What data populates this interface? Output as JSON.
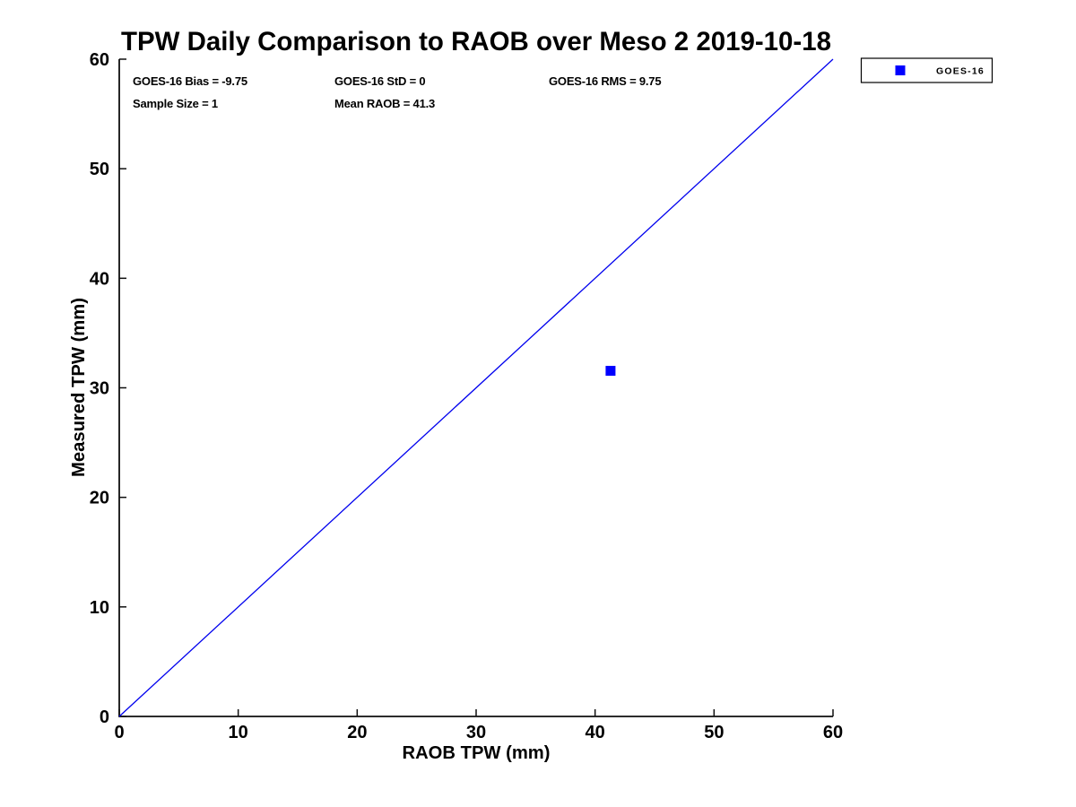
{
  "chart_data": {
    "type": "scatter",
    "title": "TPW Daily Comparison to RAOB over Meso 2 2019-10-18",
    "xlabel": "RAOB TPW (mm)",
    "ylabel": "Measured TPW (mm)",
    "xlim": [
      0,
      60
    ],
    "ylim": [
      0,
      60
    ],
    "xticks": [
      0,
      10,
      20,
      30,
      40,
      50,
      60
    ],
    "yticks": [
      0,
      10,
      20,
      30,
      40,
      50,
      60
    ],
    "grid": false,
    "box": "left-bottom-only",
    "stats": {
      "bias": "GOES-16 Bias = -9.75",
      "std": "GOES-16 StD = 0",
      "rms": "GOES-16 RMS = 9.75",
      "sample_size": "Sample Size = 1",
      "mean_raob": "Mean RAOB = 41.3"
    },
    "legend": {
      "position": "outside-top-right",
      "entries": [
        {
          "label": "GOES-16",
          "marker": "square",
          "color": "#0000ff"
        }
      ]
    },
    "series": [
      {
        "name": "GOES-16",
        "type": "scatter",
        "marker": "square",
        "color": "#0000ff",
        "points": [
          {
            "x": 41.3,
            "y": 31.55
          }
        ]
      },
      {
        "name": "one-to-one-reference-line",
        "type": "line",
        "color": "#0000ee",
        "points": [
          {
            "x": 0,
            "y": 0
          },
          {
            "x": 60,
            "y": 60
          }
        ]
      }
    ],
    "colors": {
      "axis": "#0f0f0f",
      "text": "#000000",
      "background": "#ffffff"
    }
  }
}
